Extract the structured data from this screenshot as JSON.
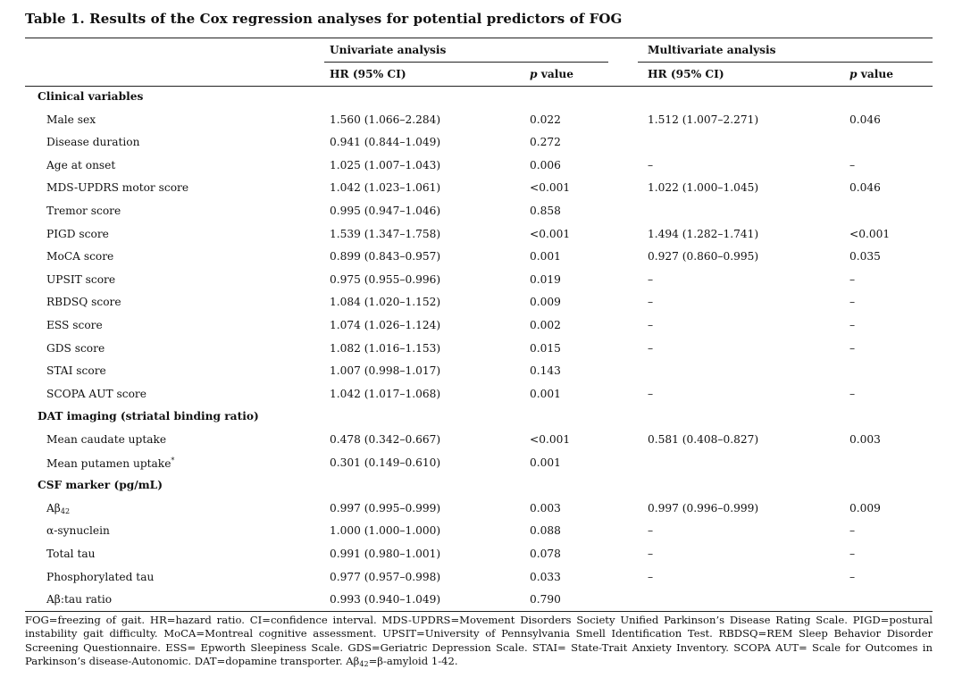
{
  "table": {
    "title": "Table 1. Results of the Cox regression analyses for potential predictors of FOG",
    "header": {
      "univariate": "Univariate analysis",
      "multivariate": "Multivariate analysis",
      "hr_label": "HR (95% CI)",
      "p_label_italic": "p",
      "p_label_rest": " value"
    },
    "rows": [
      {
        "section": true,
        "label": "Clinical variables"
      },
      {
        "label": "Male sex",
        "uni_hr": "1.560 (1.066–2.284)",
        "uni_p": "0.022",
        "multi_hr": "1.512 (1.007–2.271)",
        "multi_p": "0.046"
      },
      {
        "label": "Disease duration",
        "uni_hr": "0.941 (0.844–1.049)",
        "uni_p": "0.272",
        "multi_hr": "",
        "multi_p": ""
      },
      {
        "label": "Age at onset",
        "uni_hr": "1.025 (1.007–1.043)",
        "uni_p": "0.006",
        "multi_hr": "–",
        "multi_p": "–"
      },
      {
        "label": "MDS-UPDRS motor score",
        "uni_hr": "1.042 (1.023–1.061)",
        "uni_p": "<0.001",
        "multi_hr": "1.022 (1.000–1.045)",
        "multi_p": "0.046"
      },
      {
        "label": "Tremor score",
        "uni_hr": "0.995 (0.947–1.046)",
        "uni_p": "0.858",
        "multi_hr": "",
        "multi_p": ""
      },
      {
        "label": "PIGD score",
        "uni_hr": "1.539 (1.347–1.758)",
        "uni_p": "<0.001",
        "multi_hr": "1.494 (1.282–1.741)",
        "multi_p": "<0.001"
      },
      {
        "label": "MoCA score",
        "uni_hr": "0.899 (0.843–0.957)",
        "uni_p": "0.001",
        "multi_hr": "0.927 (0.860–0.995)",
        "multi_p": "0.035"
      },
      {
        "label": "UPSIT score",
        "uni_hr": "0.975 (0.955–0.996)",
        "uni_p": "0.019",
        "multi_hr": "–",
        "multi_p": "–"
      },
      {
        "label": "RBDSQ score",
        "uni_hr": "1.084 (1.020–1.152)",
        "uni_p": "0.009",
        "multi_hr": "–",
        "multi_p": "–"
      },
      {
        "label": "ESS score",
        "uni_hr": "1.074 (1.026–1.124)",
        "uni_p": "0.002",
        "multi_hr": "–",
        "multi_p": "–"
      },
      {
        "label": "GDS score",
        "uni_hr": "1.082 (1.016–1.153)",
        "uni_p": "0.015",
        "multi_hr": "–",
        "multi_p": "–"
      },
      {
        "label": "STAI score",
        "uni_hr": "1.007 (0.998–1.017)",
        "uni_p": "0.143",
        "multi_hr": "",
        "multi_p": ""
      },
      {
        "label": "SCOPA AUT score",
        "uni_hr": "1.042 (1.017–1.068)",
        "uni_p": "0.001",
        "multi_hr": "–",
        "multi_p": "–"
      },
      {
        "section": true,
        "label": "DAT imaging (striatal binding ratio)"
      },
      {
        "label": "Mean caudate uptake",
        "uni_hr": "0.478 (0.342–0.667)",
        "uni_p": "<0.001",
        "multi_hr": "0.581 (0.408–0.827)",
        "multi_p": "0.003"
      },
      {
        "label": "Mean putamen uptake*",
        "uni_hr": "0.301 (0.149–0.610)",
        "uni_p": "0.001",
        "multi_hr": "",
        "multi_p": ""
      },
      {
        "section": true,
        "label": "CSF marker (pg/mL)"
      },
      {
        "label": "Aβ42",
        "uni_hr": "0.997 (0.995–0.999)",
        "uni_p": "0.003",
        "multi_hr": "0.997 (0.996–0.999)",
        "multi_p": "0.009"
      },
      {
        "label": "α-synuclein",
        "uni_hr": "1.000 (1.000–1.000)",
        "uni_p": "0.088",
        "multi_hr": "–",
        "multi_p": "–"
      },
      {
        "label": "Total tau",
        "uni_hr": "0.991 (0.980–1.001)",
        "uni_p": "0.078",
        "multi_hr": "–",
        "multi_p": "–"
      },
      {
        "label": "Phosphorylated tau",
        "uni_hr": "0.977 (0.957–0.998)",
        "uni_p": "0.033",
        "multi_hr": "–",
        "multi_p": "–"
      },
      {
        "label": "Aβ:tau ratio",
        "uni_hr": "0.993 (0.940–1.049)",
        "uni_p": "0.790",
        "multi_hr": "",
        "multi_p": ""
      }
    ],
    "footnote": "FOG=freezing of gait. HR=hazard ratio. CI=confidence interval. MDS-UPDRS=Movement Disorders Society Unified Parkinson’s Disease Rating Scale. PIGD=postural instability gait difficulty. MoCA=Montreal cognitive assessment. UPSIT=University of Pennsylvania Smell Identification Test. RBDSQ=REM Sleep Behavior Disorder Screening Questionnaire. ESS= Epworth Sleepiness Scale. GDS=Geriatric Depression Scale. STAI= State-Trait Anxiety Inventory. SCOPA AUT= Scale for Outcomes in Parkinson’s disease-Autonomic. DAT=dopamine transporter. Aβ42=β-amyloid 1-42."
  }
}
